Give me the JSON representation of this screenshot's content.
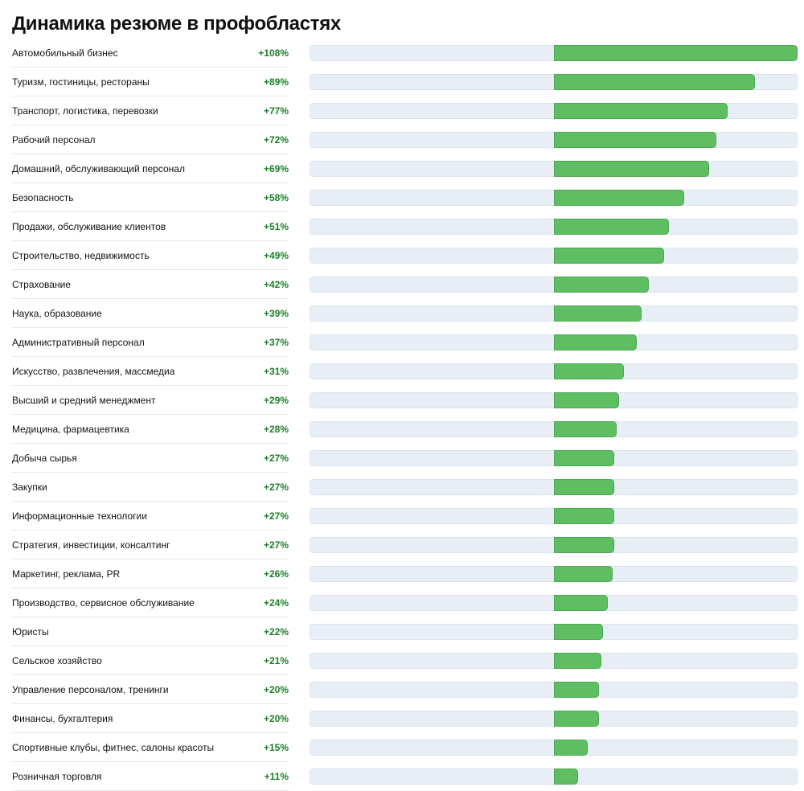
{
  "title": "Динамика резюме в профобластях",
  "colors": {
    "bar_positive": "#5fbd62",
    "value_text": "#1a7f28",
    "track": "#e8eef6"
  },
  "chart_data": {
    "type": "bar",
    "orientation": "horizontal",
    "title": "Динамика резюме в профобластях",
    "xlabel": "",
    "ylabel": "",
    "unit": "%",
    "xlim": [
      -108,
      108
    ],
    "grid": false,
    "categories": [
      "Автомобильный бизнес",
      "Туризм, гостиницы, рестораны",
      "Транспорт, логистика, перевозки",
      "Рабочий персонал",
      "Домашний, обслуживающий персонал",
      "Безопасность",
      "Продажи, обслуживание клиентов",
      "Строительство, недвижимость",
      "Страхование",
      "Наука, образование",
      "Административный персонал",
      "Искусство, развлечения, массмедиа",
      "Высший и средний менеджмент",
      "Медицина, фармацевтика",
      "Добыча сырья",
      "Закупки",
      "Информационные технологии",
      "Стратегия, инвестиции, консалтинг",
      "Маркетинг, реклама, PR",
      "Производство, сервисное обслуживание",
      "Юристы",
      "Сельское хозяйство",
      "Управление персоналом, тренинги",
      "Финансы, бухгалтерия",
      "Спортивные клубы, фитнес, салоны красоты",
      "Розничная торговля"
    ],
    "values": [
      108,
      89,
      77,
      72,
      69,
      58,
      51,
      49,
      42,
      39,
      37,
      31,
      29,
      28,
      27,
      27,
      27,
      27,
      26,
      24,
      22,
      21,
      20,
      20,
      15,
      11
    ],
    "value_labels": [
      "+108%",
      "+89%",
      "+77%",
      "+72%",
      "+69%",
      "+58%",
      "+51%",
      "+49%",
      "+42%",
      "+39%",
      "+37%",
      "+31%",
      "+29%",
      "+28%",
      "+27%",
      "+27%",
      "+27%",
      "+27%",
      "+26%",
      "+24%",
      "+22%",
      "+21%",
      "+20%",
      "+20%",
      "+15%",
      "+11%"
    ]
  }
}
